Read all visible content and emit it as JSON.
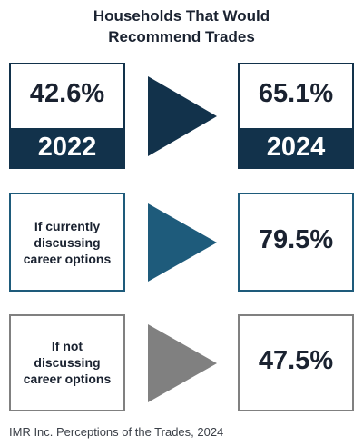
{
  "title": {
    "line1": "Households That Would",
    "line2": "Recommend Trades"
  },
  "row1": {
    "left_value": "42.6%",
    "left_year": "2022",
    "right_value": "65.1%",
    "right_year": "2024",
    "arrow_color": "#12324b"
  },
  "row2": {
    "label_line1": "If currently",
    "label_line2": "discussing",
    "label_line3": "career options",
    "value": "79.5%",
    "arrow_color": "#1e5b7b"
  },
  "row3": {
    "label_line1": "If not",
    "label_line2": "discussing",
    "label_line3": "career options",
    "value": "47.5%",
    "arrow_color": "#808080"
  },
  "source": "IMR Inc. Perceptions of the Trades, 2024",
  "chart_data": {
    "type": "table",
    "title": "Households That Would Recommend Trades",
    "rows": [
      {
        "label": "2022",
        "value": 42.6,
        "unit": "%"
      },
      {
        "label": "2024",
        "value": 65.1,
        "unit": "%"
      },
      {
        "label": "If currently discussing career options",
        "value": 79.5,
        "unit": "%"
      },
      {
        "label": "If not discussing career options",
        "value": 47.5,
        "unit": "%"
      }
    ]
  }
}
